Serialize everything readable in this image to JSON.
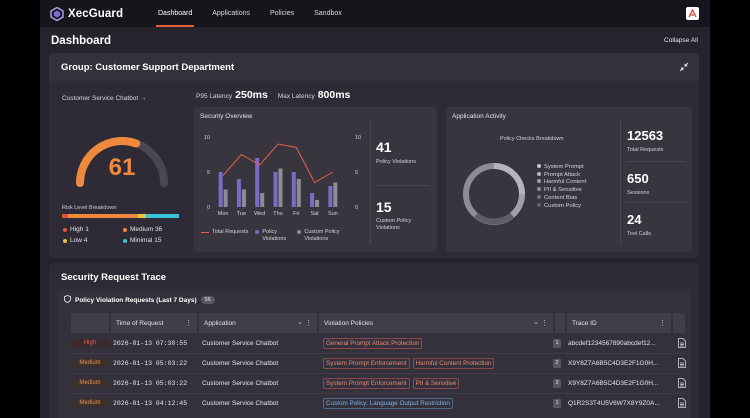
{
  "app": {
    "name": "XecGuard"
  },
  "nav": {
    "tabs": [
      "Dashboard",
      "Applications",
      "Policies",
      "Sandbox"
    ],
    "active": "Dashboard"
  },
  "page": {
    "title": "Dashboard",
    "collapse_label": "Collapse All"
  },
  "group": {
    "title": "Group: Customer Support Department",
    "chatbot_link": "Customer Service Chatbot →",
    "latency": {
      "p95_label": "P95 Latency",
      "p95_value": "250ms",
      "max_label": "Max Latency",
      "max_value": "800ms"
    },
    "risk": {
      "score": "61",
      "score_fraction": 0.61,
      "breakdown_title": "Risk Level Breakdown",
      "levels": [
        {
          "label": "High",
          "count": "1",
          "color": "#e0533e"
        },
        {
          "label": "Medium",
          "count": "36",
          "color": "#ef8a3c"
        },
        {
          "label": "Low",
          "count": "4",
          "color": "#f0c23a"
        },
        {
          "label": "Minimal",
          "count": "15",
          "color": "#36c4d6"
        }
      ]
    },
    "security_overview": {
      "title": "Security Overview",
      "stats": [
        {
          "value": "41",
          "label": "Policy Violations"
        },
        {
          "value": "15",
          "label": "Custom Policy Violations"
        }
      ],
      "legend": [
        "Total Requests",
        "Policy Violations",
        "Custom Policy Violations"
      ]
    },
    "application_activity": {
      "title": "Application Activity",
      "donut_title": "Policy Checks Breakdown",
      "categories": [
        "System Prompt",
        "Prompt Attack",
        "Harmful Content",
        "PII & Sensitive",
        "Content Bias",
        "Custom Policy"
      ],
      "stats": [
        {
          "value": "12563",
          "label": "Total Requests"
        },
        {
          "value": "650",
          "label": "Sessions"
        },
        {
          "value": "24",
          "label": "Tool Calls"
        }
      ]
    }
  },
  "chart_data": {
    "type": "bar",
    "categories": [
      "Mon",
      "Tue",
      "Wed",
      "Thu",
      "Fri",
      "Sat",
      "Sun"
    ],
    "ylim": [
      0,
      10
    ],
    "yticks_left": [
      "10",
      "5",
      "0"
    ],
    "yticks_right": [
      "10",
      "5",
      "0"
    ],
    "series": [
      {
        "name": "Policy Violations",
        "kind": "bar",
        "color": "#7a6cc4",
        "values": [
          5,
          4,
          7,
          5,
          5,
          2,
          3
        ]
      },
      {
        "name": "Custom Policy Violations",
        "kind": "bar",
        "color": "#8e8a96",
        "values": [
          2.5,
          2.5,
          2,
          5.5,
          4,
          1,
          3.5
        ]
      },
      {
        "name": "Total Requests",
        "kind": "line",
        "color": "#e4604c",
        "values": [
          4.5,
          7.5,
          6,
          9,
          8.5,
          3.5,
          5
        ]
      }
    ]
  },
  "trace": {
    "title": "Security Request Trace",
    "panel_title": "Policy Violation Requests (Last 7 Days)",
    "panel_count": "56",
    "columns": [
      "Time of Request",
      "Application",
      "Violation Policies",
      "Trace ID"
    ],
    "rows": [
      {
        "severity": "High",
        "time": "2026-01-13 07:30:55",
        "application": "Customer Service Chatbot",
        "policies": [
          "General Prompt Attack Protection"
        ],
        "policy_count": "1",
        "trace_id": "abcdef1234567890abcdef12..."
      },
      {
        "severity": "Medium",
        "time": "2026-01-13 05:03:22",
        "application": "Customer Service Chatbot",
        "policies": [
          "System Prompt Enforcement",
          "Harmful Content Protection"
        ],
        "policy_count": "2",
        "trace_id": "X9Y8Z7A6B5C4D3E2F1G0H..."
      },
      {
        "severity": "Medium",
        "time": "2026-01-13 05:03:22",
        "application": "Customer Service Chatbot",
        "policies": [
          "System Prompt Enforcement",
          "PII & Sensitive"
        ],
        "policy_count": "2",
        "trace_id": "X9Y8Z7A6B5C4D3E2F1G0H..."
      },
      {
        "severity": "Medium",
        "time": "2026-01-13 04:12:45",
        "application": "Customer Service Chatbot",
        "policies": [
          "Custom Policy: Language Output Restriction"
        ],
        "policy_count": "1",
        "trace_id": "Q1R2S3T4U5V6W7X8Y9Z0A..."
      }
    ]
  }
}
